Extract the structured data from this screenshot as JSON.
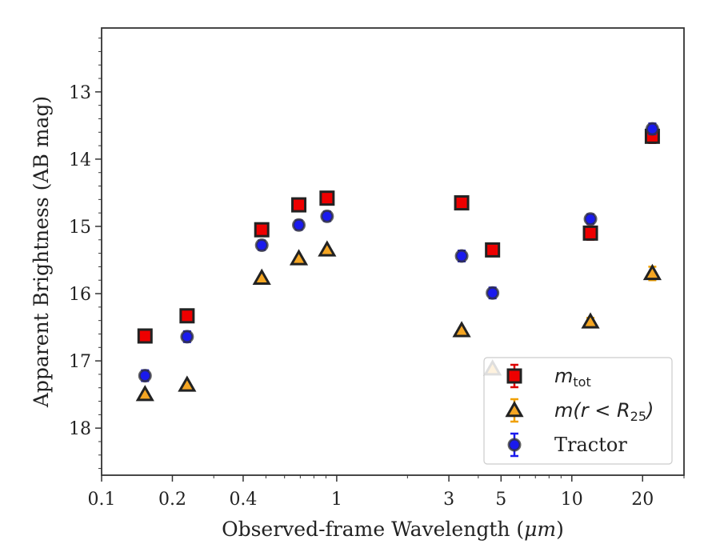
{
  "chart_data": {
    "type": "scatter",
    "xlabel_main": "Observed-frame Wavelength (",
    "xlabel_unit": "μm",
    "xlabel_end": ")",
    "ylabel": "Apparent Brightness (AB mag)",
    "x_scale": "log",
    "y_inverted": true,
    "xlim": [
      0.1,
      30
    ],
    "ylim": [
      18.7,
      12.05
    ],
    "x_ticks": [
      {
        "value": 0.1,
        "label": "0.1"
      },
      {
        "value": 0.2,
        "label": "0.2"
      },
      {
        "value": 0.4,
        "label": "0.4"
      },
      {
        "value": 1,
        "label": "1"
      },
      {
        "value": 3,
        "label": "3"
      },
      {
        "value": 5,
        "label": "5"
      },
      {
        "value": 10,
        "label": "10"
      },
      {
        "value": 20,
        "label": "20"
      }
    ],
    "y_ticks": [
      {
        "value": 13,
        "label": "13"
      },
      {
        "value": 14,
        "label": "14"
      },
      {
        "value": 15,
        "label": "15"
      },
      {
        "value": 16,
        "label": "16"
      },
      {
        "value": 17,
        "label": "17"
      },
      {
        "value": 18,
        "label": "18"
      }
    ],
    "legend_position": "lower-right",
    "series": [
      {
        "key": "m_tot",
        "legend_symbol": "m",
        "legend_sub": "tot",
        "marker": "square",
        "fill": "#ee0000",
        "error_color": "#dd0000",
        "points": [
          {
            "x": 0.153,
            "y": 16.63,
            "err": 0.04
          },
          {
            "x": 0.231,
            "y": 16.33,
            "err": 0.04
          },
          {
            "x": 0.48,
            "y": 15.05,
            "err": 0.03
          },
          {
            "x": 0.69,
            "y": 14.68,
            "err": 0.03
          },
          {
            "x": 0.91,
            "y": 14.58,
            "err": 0.04
          },
          {
            "x": 3.4,
            "y": 14.65,
            "err": 0.03
          },
          {
            "x": 4.6,
            "y": 15.35,
            "err": 0.03
          },
          {
            "x": 12.0,
            "y": 15.1,
            "err": 0.1
          },
          {
            "x": 22.0,
            "y": 13.66,
            "err": 0.1
          }
        ]
      },
      {
        "key": "m_r25",
        "legend_symbol": "m(r < R",
        "legend_sub": "25",
        "legend_end": ")",
        "marker": "triangle",
        "fill": "#f5a623",
        "error_color": "#f0a000",
        "points": [
          {
            "x": 0.153,
            "y": 17.5,
            "err": 0.03
          },
          {
            "x": 0.231,
            "y": 17.36,
            "err": 0.03
          },
          {
            "x": 0.48,
            "y": 15.77,
            "err": 0.02
          },
          {
            "x": 0.69,
            "y": 15.48,
            "err": 0.02
          },
          {
            "x": 0.91,
            "y": 15.35,
            "err": 0.02
          },
          {
            "x": 3.4,
            "y": 16.55,
            "err": 0.03
          },
          {
            "x": 4.6,
            "y": 17.12,
            "err": 0.03
          },
          {
            "x": 12.0,
            "y": 16.42,
            "err": 0.06
          },
          {
            "x": 22.0,
            "y": 15.7,
            "err": 0.1
          }
        ]
      },
      {
        "key": "tractor",
        "legend_symbol": "Tractor",
        "marker": "circle",
        "fill": "#1a1aee",
        "error_color": "#1a1aee",
        "points": [
          {
            "x": 0.153,
            "y": 17.22,
            "err": 0.08
          },
          {
            "x": 0.231,
            "y": 16.64,
            "err": 0.08
          },
          {
            "x": 0.48,
            "y": 15.28,
            "err": 0.07
          },
          {
            "x": 0.69,
            "y": 14.98,
            "err": 0.07
          },
          {
            "x": 0.91,
            "y": 14.85,
            "err": 0.07
          },
          {
            "x": 3.4,
            "y": 15.44,
            "err": 0.08
          },
          {
            "x": 4.6,
            "y": 15.99,
            "err": 0.08
          },
          {
            "x": 12.0,
            "y": 14.89,
            "err": 0.07
          },
          {
            "x": 22.0,
            "y": 13.55,
            "err": 0.08
          }
        ]
      }
    ]
  }
}
